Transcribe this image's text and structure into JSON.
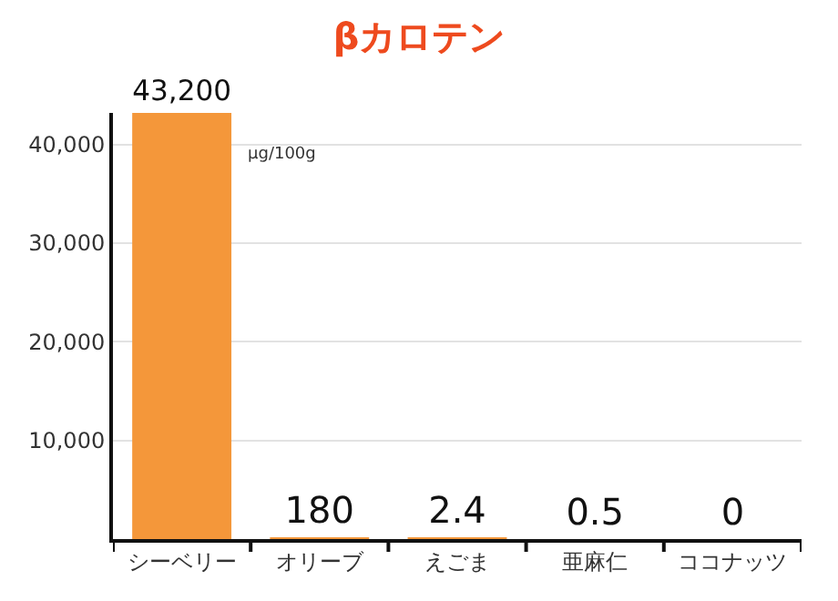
{
  "chart_data": {
    "type": "bar",
    "title": "βカロテン",
    "categories": [
      "シーベリー",
      "オリーブ",
      "えごま",
      "亜麻仁",
      "ココナッツ"
    ],
    "values": [
      43200,
      180,
      2.4,
      0.5,
      0
    ],
    "value_labels": [
      "43,200",
      "180",
      "2.4",
      "0.5",
      "0"
    ],
    "color": "#f4973a",
    "ylim": [
      0,
      43200
    ],
    "yticks": [
      {
        "value": 10000,
        "label": "10,000"
      },
      {
        "value": 20000,
        "label": "20,000"
      },
      {
        "value": 30000,
        "label": "30,000"
      },
      {
        "value": 40000,
        "label": "40,000"
      }
    ],
    "grid": "y",
    "annotations": [
      "μg/100g"
    ]
  }
}
